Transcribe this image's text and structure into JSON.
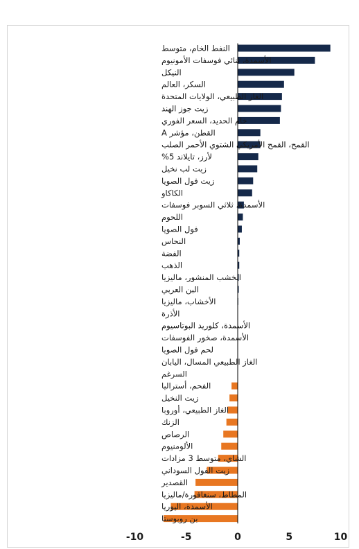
{
  "colors": {
    "positive": "#15294a",
    "negative": "#e87722",
    "axis": "#000000"
  },
  "chart_data": {
    "type": "bar",
    "orientation": "horizontal",
    "title": "",
    "xlabel": "",
    "ylabel": "",
    "xlim": [
      -11,
      11
    ],
    "xticks": [
      -10,
      -5,
      0,
      5,
      10
    ],
    "xtick_labels": [
      "-10",
      "-5",
      "0",
      "5",
      "10"
    ],
    "grid": false,
    "legend": "none",
    "categories": [
      "النفط الخام، متوسط",
      "الأسمدة، ثنائي فوسفات الأمونيوم",
      "النيكل",
      "السكر، العالم",
      "الغاز الطبيعي، الولايات المتحدة",
      "زيت جوز الهند",
      "خام الحديد، السعر الفوري",
      "القطن، مؤشر A",
      "القمح، القمح الأمريكي الشتوي الأحمر الصلب",
      "لأرز، تايلاند 5%",
      "زيت لب نخيل",
      "زيت فول الصويا",
      "الكاكاو",
      "الأسمدة، ثلاثي السوبر فوسفات",
      "اللحوم",
      "فول الصويا",
      "النحاس",
      "الفضة",
      "الذهب",
      "الخشب المنشور، ماليزيا",
      "البن العربي",
      "الأخشاب، ماليزيا",
      "الأذرة",
      "الأسمدة، كلوريد البوتاسيوم",
      "الأسمدة، صخور الفوسفات",
      "لحم فول الصويا",
      "الغاز الطبيعي المسال، اليابان",
      "السرغم",
      "الفحم، أستراليا",
      "زيت النخيل",
      "الغاز الطبيعي، أوروبا",
      "الزنك",
      "الرصاص",
      "الألومنيوم",
      "الشاي، متوسط 3 مزادات",
      "زيت الفول السوداني",
      "القصدير",
      "المطاط، سنغافورة/ماليزيا",
      "الأسمدة، اليوريا",
      "بن روبوستا"
    ],
    "values": [
      9.0,
      7.5,
      5.5,
      4.5,
      4.3,
      4.2,
      4.1,
      2.2,
      2.2,
      2.0,
      1.9,
      1.5,
      1.4,
      0.6,
      0.5,
      0.4,
      0.2,
      0.15,
      0.15,
      0.1,
      0.1,
      0.05,
      0.0,
      0.0,
      0.0,
      0.0,
      0.0,
      0.0,
      -0.6,
      -0.8,
      -1.0,
      -1.1,
      -1.4,
      -1.6,
      -1.9,
      -3.0,
      -4.1,
      -4.2,
      -6.5,
      -7.2
    ]
  }
}
